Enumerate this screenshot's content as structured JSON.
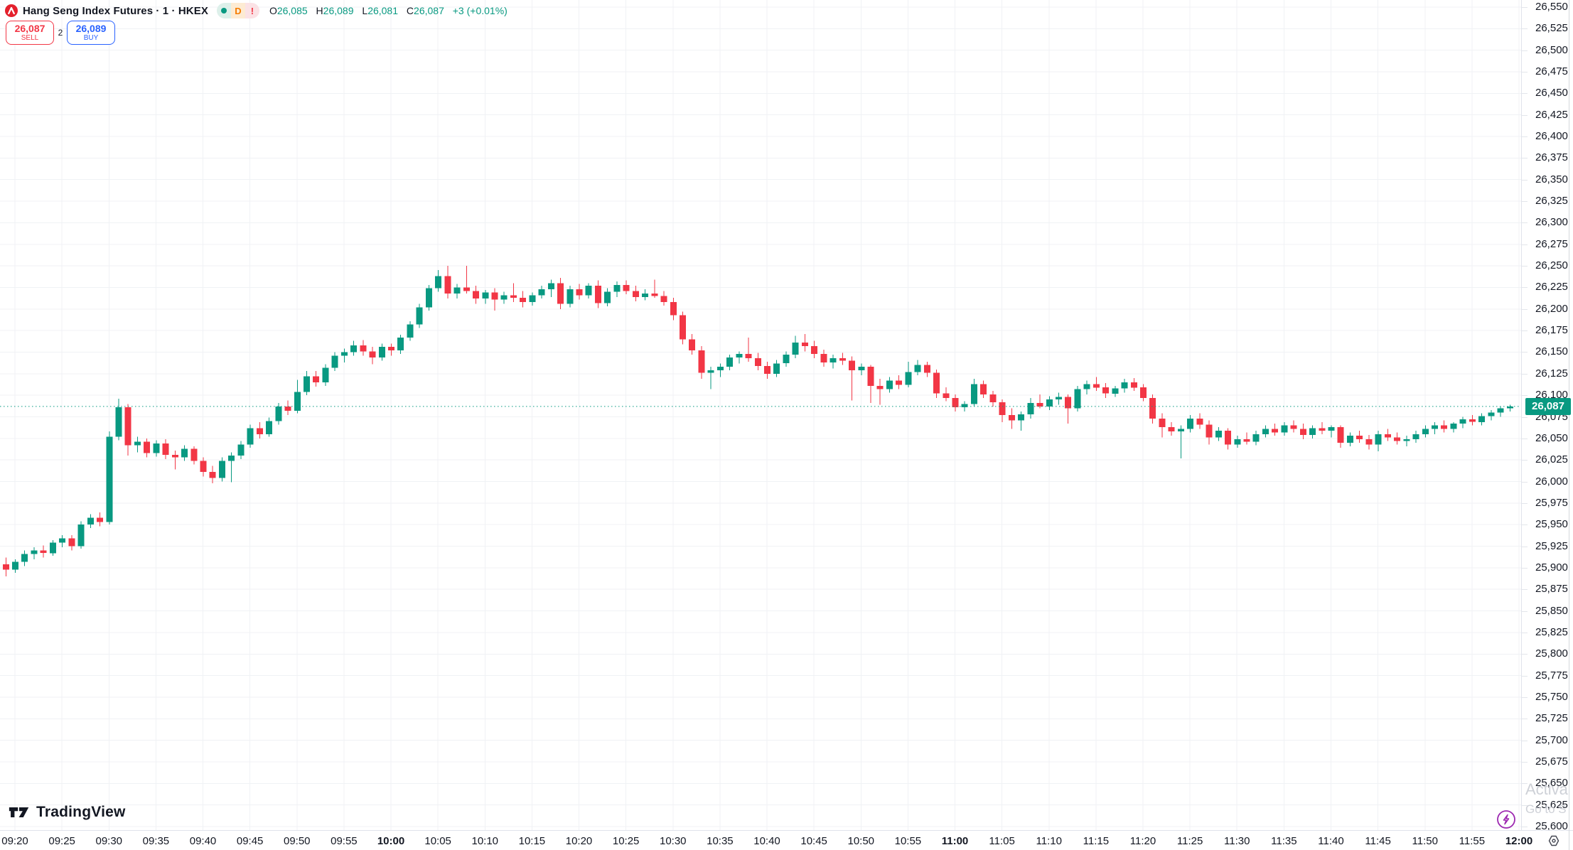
{
  "header": {
    "title": "Hang Seng Index Futures · 1 · HKEX",
    "interval_badge": "D",
    "alert_badge": "!",
    "ohlc": {
      "o_label": "O",
      "o": "26,085",
      "h_label": "H",
      "h": "26,089",
      "l_label": "L",
      "l": "26,081",
      "c_label": "C",
      "c": "26,087",
      "change": "+3 (+0.01%)"
    }
  },
  "trade_panel": {
    "sell_price": "26,087",
    "sell_label": "SELL",
    "spread": "2",
    "buy_price": "26,089",
    "buy_label": "BUY"
  },
  "price_axis": {
    "min": 25600,
    "max": 26550,
    "step": 25,
    "last_price_label": "26,087"
  },
  "time_axis": {
    "labels": [
      "09:20",
      "09:25",
      "09:30",
      "09:35",
      "09:40",
      "09:45",
      "09:50",
      "09:55",
      "10:00",
      "10:05",
      "10:10",
      "10:15",
      "10:20",
      "10:25",
      "10:30",
      "10:35",
      "10:40",
      "10:45",
      "10:50",
      "10:55",
      "11:00",
      "11:05",
      "11:10",
      "11:15",
      "11:20",
      "11:25",
      "11:30",
      "11:35",
      "11:40",
      "11:45",
      "11:50",
      "11:55",
      "12:00"
    ]
  },
  "footer": {
    "logo_text": "TradingView"
  },
  "watermark": {
    "line1": "Activa",
    "line2": "Go to S"
  },
  "colors": {
    "up": "#089981",
    "down": "#F23645",
    "buy": "#2962FF",
    "sell": "#F23645",
    "grid": "#F0F2F5",
    "last_price_bg": "#089981",
    "lightning": "#9C27B0"
  },
  "chart_data": {
    "type": "candlestick",
    "title": "Hang Seng Index Futures",
    "exchange": "HKEX",
    "interval": "1 minute",
    "start_time": "09:18",
    "interval_min": 1,
    "last_price": 26087,
    "ylim": [
      25600,
      26550
    ],
    "grid": true,
    "candles": [
      [
        25910,
        25918,
        25896,
        25904
      ],
      [
        25904,
        25912,
        25890,
        25898
      ],
      [
        25898,
        25910,
        25894,
        25907
      ],
      [
        25907,
        25920,
        25902,
        25916
      ],
      [
        25916,
        25924,
        25910,
        25920
      ],
      [
        25920,
        25926,
        25912,
        25917
      ],
      [
        25917,
        25932,
        25914,
        25929
      ],
      [
        25929,
        25938,
        25924,
        25934
      ],
      [
        25934,
        25938,
        25920,
        25925
      ],
      [
        25925,
        25954,
        25922,
        25950
      ],
      [
        25950,
        25962,
        25946,
        25958
      ],
      [
        25958,
        25964,
        25948,
        25953
      ],
      [
        25953,
        26058,
        25950,
        26052
      ],
      [
        26052,
        26096,
        26048,
        26086
      ],
      [
        26086,
        26090,
        26030,
        26042
      ],
      [
        26042,
        26052,
        26034,
        26046
      ],
      [
        26046,
        26050,
        26028,
        26033
      ],
      [
        26033,
        26048,
        26029,
        26044
      ],
      [
        26044,
        26049,
        26026,
        26031
      ],
      [
        26031,
        26036,
        26014,
        26028
      ],
      [
        26028,
        26042,
        26024,
        26038
      ],
      [
        26038,
        26041,
        26020,
        26024
      ],
      [
        26024,
        26028,
        26006,
        26011
      ],
      [
        26011,
        26018,
        25998,
        26004
      ],
      [
        26004,
        26028,
        26000,
        26024
      ],
      [
        26024,
        26034,
        25999,
        26030
      ],
      [
        26030,
        26047,
        26026,
        26043
      ],
      [
        26043,
        26066,
        26039,
        26062
      ],
      [
        26062,
        26069,
        26050,
        26055
      ],
      [
        26055,
        26074,
        26052,
        26070
      ],
      [
        26070,
        26091,
        26066,
        26087
      ],
      [
        26087,
        26094,
        26077,
        26082
      ],
      [
        26082,
        26118,
        26079,
        26104
      ],
      [
        26104,
        26128,
        26100,
        26122
      ],
      [
        26122,
        26128,
        26110,
        26115
      ],
      [
        26115,
        26136,
        26111,
        26132
      ],
      [
        26132,
        26150,
        26128,
        26146
      ],
      [
        26146,
        26154,
        26138,
        26150
      ],
      [
        26150,
        26163,
        26146,
        26158
      ],
      [
        26158,
        26164,
        26146,
        26151
      ],
      [
        26151,
        26156,
        26136,
        26144
      ],
      [
        26144,
        26160,
        26140,
        26156
      ],
      [
        26156,
        26160,
        26146,
        26152
      ],
      [
        26152,
        26170,
        26148,
        26167
      ],
      [
        26167,
        26186,
        26163,
        26182
      ],
      [
        26182,
        26206,
        26178,
        26202
      ],
      [
        26202,
        26228,
        26198,
        26224
      ],
      [
        26224,
        26245,
        26220,
        26238
      ],
      [
        26238,
        26250,
        26212,
        26218
      ],
      [
        26218,
        26229,
        26212,
        26225
      ],
      [
        26225,
        26250,
        26218,
        26221
      ],
      [
        26221,
        26227,
        26206,
        26212
      ],
      [
        26212,
        26222,
        26206,
        26219
      ],
      [
        26219,
        26224,
        26198,
        26211
      ],
      [
        26211,
        26220,
        26206,
        26216
      ],
      [
        26216,
        26230,
        26208,
        26213
      ],
      [
        26213,
        26221,
        26202,
        26208
      ],
      [
        26208,
        26219,
        26204,
        26216
      ],
      [
        26216,
        26227,
        26212,
        26223
      ],
      [
        26223,
        26234,
        26214,
        26230
      ],
      [
        26230,
        26236,
        26200,
        26206
      ],
      [
        26206,
        26227,
        26202,
        26223
      ],
      [
        26223,
        26229,
        26211,
        26216
      ],
      [
        26216,
        26230,
        26212,
        26227
      ],
      [
        26227,
        26233,
        26201,
        26207
      ],
      [
        26207,
        26224,
        26203,
        26220
      ],
      [
        26220,
        26232,
        26214,
        26228
      ],
      [
        26228,
        26233,
        26217,
        26221
      ],
      [
        26221,
        26227,
        26209,
        26214
      ],
      [
        26214,
        26223,
        26210,
        26218
      ],
      [
        26218,
        26234,
        26213,
        26215
      ],
      [
        26215,
        26221,
        26204,
        26208
      ],
      [
        26208,
        26213,
        26187,
        26193
      ],
      [
        26193,
        26197,
        26159,
        26165
      ],
      [
        26165,
        26171,
        26147,
        26152
      ],
      [
        26152,
        26157,
        26119,
        26126
      ],
      [
        26126,
        26133,
        26107,
        26129
      ],
      [
        26129,
        26137,
        26121,
        26133
      ],
      [
        26133,
        26147,
        26129,
        26144
      ],
      [
        26144,
        26151,
        26137,
        26148
      ],
      [
        26148,
        26167,
        26139,
        26143
      ],
      [
        26143,
        26149,
        26129,
        26134
      ],
      [
        26134,
        26139,
        26119,
        26125
      ],
      [
        26125,
        26141,
        26121,
        26137
      ],
      [
        26137,
        26151,
        26133,
        26147
      ],
      [
        26147,
        26169,
        26143,
        26161
      ],
      [
        26161,
        26171,
        26151,
        26157
      ],
      [
        26157,
        26163,
        26143,
        26148
      ],
      [
        26148,
        26153,
        26133,
        26138
      ],
      [
        26138,
        26147,
        26131,
        26143
      ],
      [
        26143,
        26149,
        26135,
        26140
      ],
      [
        26140,
        26145,
        26094,
        26129
      ],
      [
        26129,
        26137,
        26123,
        26133
      ],
      [
        26133,
        26135,
        26091,
        26111
      ],
      [
        26111,
        26119,
        26089,
        26107
      ],
      [
        26107,
        26121,
        26103,
        26117
      ],
      [
        26117,
        26123,
        26107,
        26112
      ],
      [
        26112,
        26139,
        26109,
        26127
      ],
      [
        26127,
        26141,
        26123,
        26135
      ],
      [
        26135,
        26139,
        26121,
        26126
      ],
      [
        26126,
        26130,
        26097,
        26102
      ],
      [
        26102,
        26109,
        26093,
        26097
      ],
      [
        26097,
        26101,
        26081,
        26086
      ],
      [
        26086,
        26093,
        26081,
        26090
      ],
      [
        26090,
        26119,
        26087,
        26113
      ],
      [
        26113,
        26117,
        26097,
        26101
      ],
      [
        26101,
        26105,
        26087,
        26092
      ],
      [
        26092,
        26095,
        26069,
        26077
      ],
      [
        26077,
        26085,
        26061,
        26071
      ],
      [
        26071,
        26081,
        26059,
        26078
      ],
      [
        26078,
        26097,
        26073,
        26091
      ],
      [
        26091,
        26101,
        26085,
        26087
      ],
      [
        26087,
        26099,
        26083,
        26095
      ],
      [
        26095,
        26103,
        26089,
        26098
      ],
      [
        26098,
        26101,
        26067,
        26085
      ],
      [
        26085,
        26111,
        26081,
        26107
      ],
      [
        26107,
        26117,
        26101,
        26113
      ],
      [
        26113,
        26121,
        26105,
        26109
      ],
      [
        26109,
        26114,
        26097,
        26102
      ],
      [
        26102,
        26111,
        26098,
        26108
      ],
      [
        26108,
        26119,
        26103,
        26115
      ],
      [
        26115,
        26120,
        26105,
        26109
      ],
      [
        26109,
        26113,
        26093,
        26097
      ],
      [
        26097,
        26101,
        26067,
        26073
      ],
      [
        26073,
        26079,
        26051,
        26063
      ],
      [
        26063,
        26069,
        26053,
        26058
      ],
      [
        26058,
        26065,
        26027,
        26061
      ],
      [
        26061,
        26077,
        26057,
        26073
      ],
      [
        26073,
        26079,
        26061,
        26066
      ],
      [
        26066,
        26071,
        26043,
        26051
      ],
      [
        26051,
        26063,
        26047,
        26059
      ],
      [
        26059,
        26062,
        26037,
        26043
      ],
      [
        26043,
        26053,
        26039,
        26049
      ],
      [
        26049,
        26057,
        26043,
        26046
      ],
      [
        26046,
        26059,
        26042,
        26055
      ],
      [
        26055,
        26065,
        26051,
        26061
      ],
      [
        26061,
        26067,
        26053,
        26057
      ],
      [
        26057,
        26069,
        26053,
        26065
      ],
      [
        26065,
        26071,
        26057,
        26061
      ],
      [
        26061,
        26067,
        26049,
        26054
      ],
      [
        26054,
        26065,
        26050,
        26062
      ],
      [
        26062,
        26069,
        26055,
        26059
      ],
      [
        26059,
        26065,
        26051,
        26063
      ],
      [
        26063,
        26065,
        26039,
        26045
      ],
      [
        26045,
        26057,
        26041,
        26053
      ],
      [
        26053,
        26059,
        26045,
        26049
      ],
      [
        26049,
        26054,
        26037,
        26043
      ],
      [
        26043,
        26059,
        26035,
        26055
      ],
      [
        26055,
        26061,
        26047,
        26051
      ],
      [
        26051,
        26057,
        26043,
        26047
      ],
      [
        26047,
        26053,
        26041,
        26049
      ],
      [
        26049,
        26059,
        26045,
        26055
      ],
      [
        26055,
        26065,
        26051,
        26061
      ],
      [
        26061,
        26069,
        26055,
        26065
      ],
      [
        26065,
        26071,
        26057,
        26061
      ],
      [
        26061,
        26069,
        26057,
        26067
      ],
      [
        26067,
        26075,
        26062,
        26072
      ],
      [
        26072,
        26077,
        26065,
        26069
      ],
      [
        26069,
        26079,
        26065,
        26076
      ],
      [
        26076,
        26083,
        26071,
        26080
      ],
      [
        26080,
        26087,
        26075,
        26085
      ],
      [
        26085,
        26089,
        26081,
        26087
      ]
    ]
  }
}
